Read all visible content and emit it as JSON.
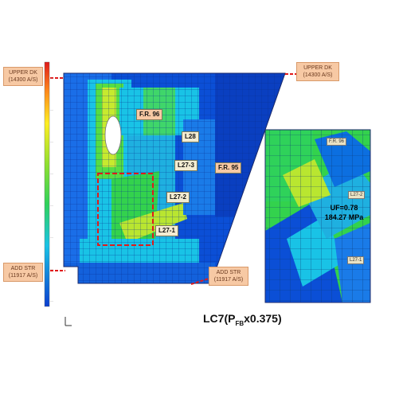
{
  "colors": {
    "blue": "#0b4fd6",
    "cyan": "#19c3e6",
    "green": "#33d24d",
    "yellowgreen": "#b9e630",
    "yellow": "#ffee22",
    "red": "#e01a1a"
  },
  "callouts": {
    "upper_left": [
      "UPPER DK",
      "(14300 A/S)"
    ],
    "upper_right": [
      "UPPER DK",
      "(14300 A/S)"
    ],
    "lower_left": [
      "ADD STR",
      "(11917 A/S)"
    ],
    "lower_mid": [
      "ADD STR",
      "(11917 A/S)"
    ]
  },
  "labels": {
    "fr96_main": "F.R. 96",
    "l28": "L28",
    "l27_3": "L27-3",
    "fr95": "F.R. 95",
    "l27_2": "L27-2",
    "l27_1": "L27-1",
    "fr96_inset": "F.R. 96",
    "l27_2_inset": "L27-2",
    "l27_1_inset": "L27-1"
  },
  "inset": {
    "uf_line": "UF=0.78",
    "stress_line": "184.27 MPa"
  },
  "title": {
    "prefix": "LC7(P",
    "subscript": "FB",
    "suffix": "x0.375)"
  }
}
